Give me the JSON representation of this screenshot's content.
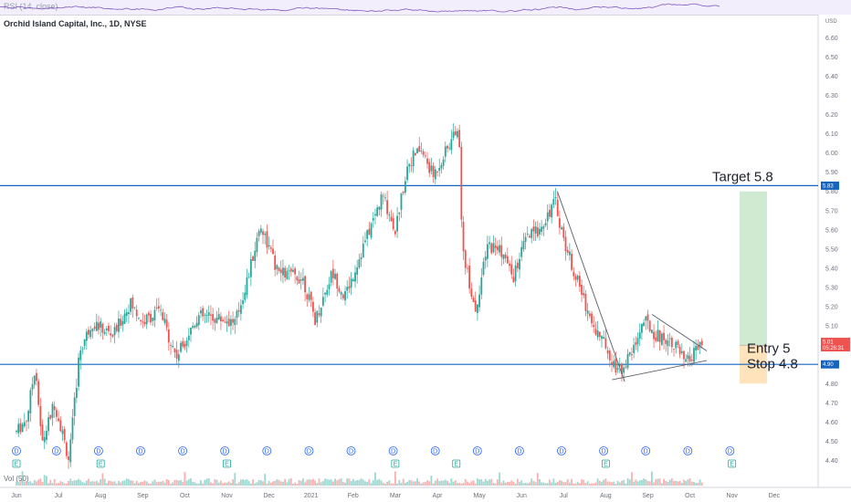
{
  "header": {
    "symbol_title": "Orchid Island Capital, Inc., 1D, NYSE",
    "currency": "USD",
    "rsi_label": "RSI (14, close)",
    "volume_label": "Vol (50)"
  },
  "annotations": {
    "target": "Target 5.8",
    "entry": "Entry 5",
    "stop": "Stop 4.8"
  },
  "price_tags": {
    "upper_line": "5.83",
    "last_price": "5.01",
    "countdown": "05:26:31",
    "lower_line": "4.90"
  },
  "colors": {
    "up": "#26a69a",
    "down": "#ef5350",
    "horizontal_line": "#1565c0",
    "target_zone": "#c8e6c9",
    "stop_zone": "#ffe0b2",
    "trendline": "#5b5f6a",
    "dividend_marker": "#2962ff",
    "earnings_marker": "#26a69a"
  },
  "chart_data": {
    "type": "candlestick",
    "y_ticks": [
      "6.60",
      "6.50",
      "6.40",
      "6.30",
      "6.20",
      "6.10",
      "6.00",
      "5.90",
      "5.80",
      "5.70",
      "5.60",
      "5.50",
      "5.40",
      "5.30",
      "5.20",
      "5.10",
      "5.00",
      "4.90",
      "4.80",
      "4.70",
      "4.60",
      "4.50",
      "4.40"
    ],
    "ylim": [
      4.35,
      6.72
    ],
    "x_months": [
      "Jun",
      "Jul",
      "Aug",
      "Sep",
      "Oct",
      "Nov",
      "Dec",
      "2021",
      "Feb",
      "Mar",
      "Apr",
      "May",
      "Jun",
      "Jul",
      "Aug",
      "Sep",
      "Oct",
      "Nov",
      "Dec"
    ],
    "horizontal_lines": [
      {
        "price": 5.83,
        "label": "5.83"
      },
      {
        "price": 4.9,
        "label": "4.90"
      }
    ],
    "trade_setup": {
      "target": 5.8,
      "entry": 5.0,
      "stop": 4.8
    },
    "anchors": [
      {
        "month": 0,
        "price": 4.55
      },
      {
        "month": 0.25,
        "price": 4.62
      },
      {
        "month": 0.45,
        "price": 4.9
      },
      {
        "month": 0.6,
        "price": 4.48
      },
      {
        "month": 0.9,
        "price": 4.7
      },
      {
        "month": 1.05,
        "price": 4.58
      },
      {
        "month": 1.25,
        "price": 4.4
      },
      {
        "month": 1.5,
        "price": 4.97
      },
      {
        "month": 1.8,
        "price": 5.12
      },
      {
        "month": 2.3,
        "price": 5.05
      },
      {
        "month": 2.7,
        "price": 5.22
      },
      {
        "month": 3.0,
        "price": 5.12
      },
      {
        "month": 3.4,
        "price": 5.18
      },
      {
        "month": 3.8,
        "price": 4.94
      },
      {
        "month": 4.3,
        "price": 5.15
      },
      {
        "month": 4.8,
        "price": 5.14
      },
      {
        "month": 5.2,
        "price": 5.12
      },
      {
        "month": 5.5,
        "price": 5.35
      },
      {
        "month": 5.8,
        "price": 5.63
      },
      {
        "month": 6.2,
        "price": 5.38
      },
      {
        "month": 6.8,
        "price": 5.35
      },
      {
        "month": 7.1,
        "price": 5.13
      },
      {
        "month": 7.5,
        "price": 5.38
      },
      {
        "month": 7.8,
        "price": 5.25
      },
      {
        "month": 8.3,
        "price": 5.55
      },
      {
        "month": 8.7,
        "price": 5.78
      },
      {
        "month": 9.0,
        "price": 5.6
      },
      {
        "month": 9.3,
        "price": 5.95
      },
      {
        "month": 9.6,
        "price": 6.02
      },
      {
        "month": 9.9,
        "price": 5.88
      },
      {
        "month": 10.3,
        "price": 6.05
      },
      {
        "month": 10.5,
        "price": 6.15
      },
      {
        "month": 10.6,
        "price": 5.5
      },
      {
        "month": 10.9,
        "price": 5.18
      },
      {
        "month": 11.2,
        "price": 5.52
      },
      {
        "month": 11.5,
        "price": 5.5
      },
      {
        "month": 11.8,
        "price": 5.35
      },
      {
        "month": 12.1,
        "price": 5.55
      },
      {
        "month": 12.4,
        "price": 5.6
      },
      {
        "month": 12.8,
        "price": 5.75
      },
      {
        "month": 13.0,
        "price": 5.55
      },
      {
        "month": 13.3,
        "price": 5.35
      },
      {
        "month": 13.7,
        "price": 5.1
      },
      {
        "month": 14.0,
        "price": 5.0
      },
      {
        "month": 14.3,
        "price": 4.86
      },
      {
        "month": 14.6,
        "price": 4.95
      },
      {
        "month": 14.9,
        "price": 5.13
      },
      {
        "month": 15.2,
        "price": 5.05
      },
      {
        "month": 15.6,
        "price": 5.02
      },
      {
        "month": 15.9,
        "price": 4.9
      },
      {
        "month": 16.3,
        "price": 5.01
      }
    ],
    "trendlines": [
      {
        "from": {
          "month": 12.85,
          "price": 5.8
        },
        "to": {
          "month": 14.45,
          "price": 4.81
        }
      },
      {
        "from": {
          "month": 14.15,
          "price": 4.82
        },
        "to": {
          "month": 16.4,
          "price": 4.92
        }
      },
      {
        "from": {
          "month": 15.1,
          "price": 5.16
        },
        "to": {
          "month": 16.4,
          "price": 4.97
        }
      }
    ],
    "events": [
      {
        "month": 0,
        "kind": "D"
      },
      {
        "month": 0.0,
        "kind": "E"
      },
      {
        "month": 0.95,
        "kind": "D"
      },
      {
        "month": 1.95,
        "kind": "D"
      },
      {
        "month": 2.0,
        "kind": "E"
      },
      {
        "month": 2.95,
        "kind": "D"
      },
      {
        "month": 3.95,
        "kind": "D"
      },
      {
        "month": 4.95,
        "kind": "D"
      },
      {
        "month": 5.0,
        "kind": "E"
      },
      {
        "month": 5.95,
        "kind": "D"
      },
      {
        "month": 6.95,
        "kind": "D"
      },
      {
        "month": 7.95,
        "kind": "D"
      },
      {
        "month": 8.95,
        "kind": "D"
      },
      {
        "month": 9.0,
        "kind": "E"
      },
      {
        "month": 9.95,
        "kind": "D"
      },
      {
        "month": 10.45,
        "kind": "E"
      },
      {
        "month": 10.95,
        "kind": "D"
      },
      {
        "month": 11.95,
        "kind": "D"
      },
      {
        "month": 12.95,
        "kind": "D"
      },
      {
        "month": 13.95,
        "kind": "D"
      },
      {
        "month": 14.0,
        "kind": "E"
      },
      {
        "month": 14.95,
        "kind": "D"
      },
      {
        "month": 15.95,
        "kind": "D"
      },
      {
        "month": 16.95,
        "kind": "D"
      },
      {
        "month": 17.0,
        "kind": "E"
      }
    ]
  }
}
